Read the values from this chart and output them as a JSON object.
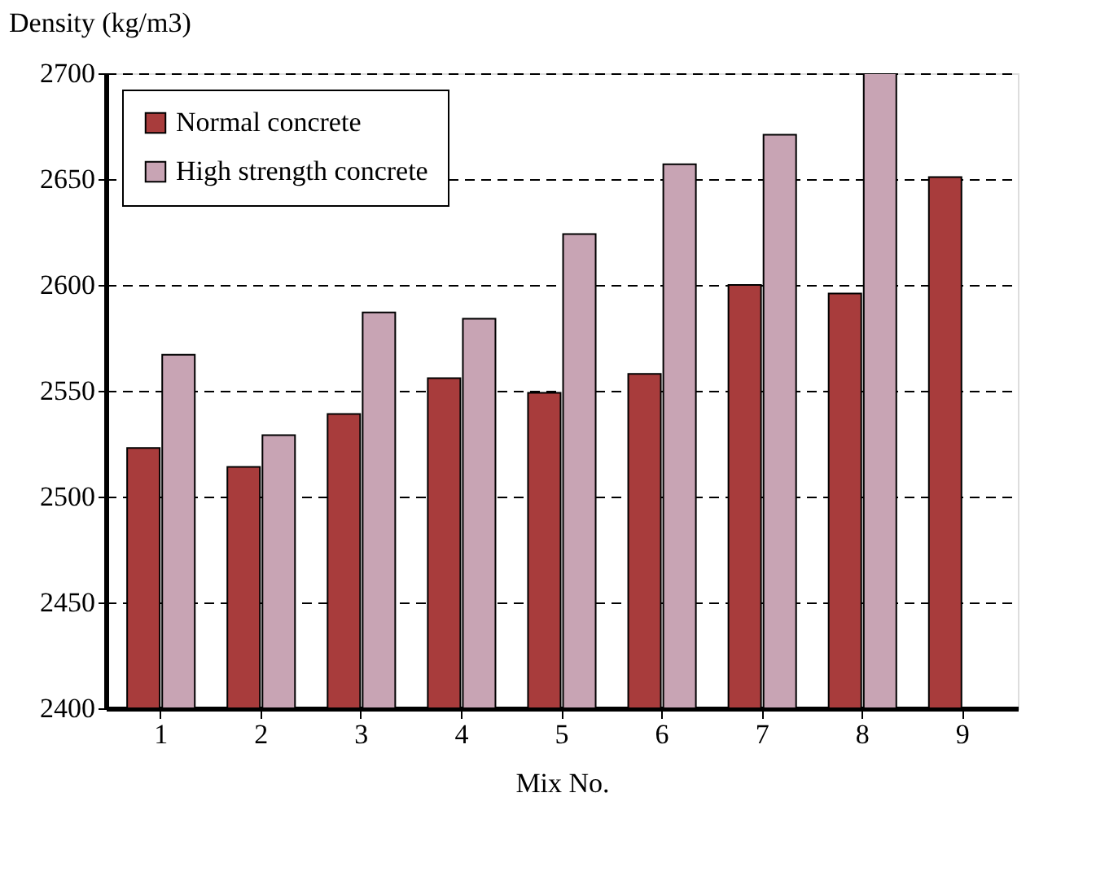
{
  "chart_data": {
    "type": "bar",
    "xlabel": "Mix No.",
    "ylabel": "Density (kg/m3)",
    "categories": [
      "1",
      "2",
      "3",
      "4",
      "5",
      "6",
      "7",
      "8",
      "9"
    ],
    "series": [
      {
        "name": "Normal concrete",
        "color": "#a83c3c",
        "values": [
          2523,
          2514,
          2539,
          2556,
          2549,
          2558,
          2600,
          2596,
          2651
        ]
      },
      {
        "name": "High strength concrete",
        "color": "#c8a4b4",
        "values": [
          2567,
          2529,
          2587,
          2584,
          2624,
          2657,
          2671,
          2700,
          null
        ]
      }
    ],
    "ylim": [
      2400,
      2700
    ],
    "yticks": [
      2400,
      2450,
      2500,
      2550,
      2600,
      2650,
      2700
    ],
    "grid": "y",
    "line_style": "dashed",
    "legend": "top left"
  }
}
